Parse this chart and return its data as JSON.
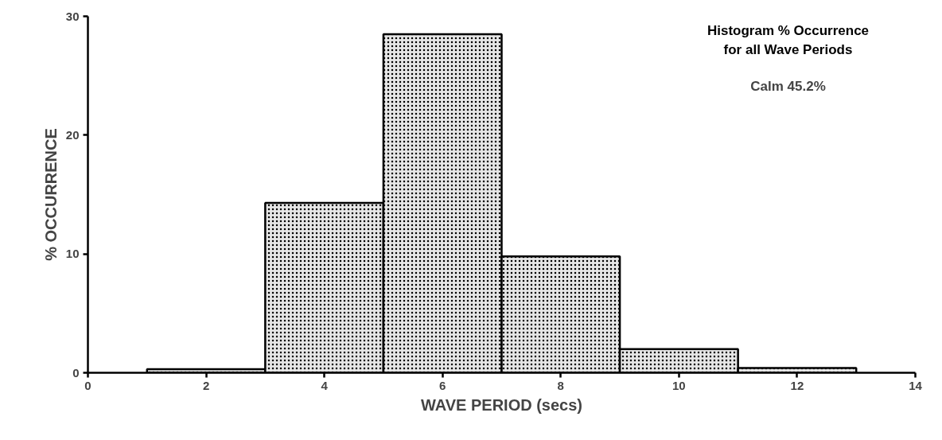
{
  "chart_data": {
    "type": "histogram",
    "title": "Histogram % Occurrence\nfor all Wave Periods",
    "xlabel": "WAVE PERIOD (secs)",
    "ylabel": "% OCCURRENCE",
    "annotations": [
      "Calm 45.2%"
    ],
    "bins": [
      1,
      3,
      5,
      7,
      9,
      11,
      13
    ],
    "values": [
      0.3,
      14.3,
      28.5,
      9.8,
      2.0,
      0.4
    ],
    "color": "#e6e6e6",
    "xlim": [
      0,
      14
    ],
    "ylim": [
      0,
      30
    ],
    "xticks": [
      0,
      2,
      4,
      6,
      8,
      10,
      12,
      14
    ],
    "yticks": [
      0,
      10,
      20,
      30
    ],
    "grid": false
  }
}
